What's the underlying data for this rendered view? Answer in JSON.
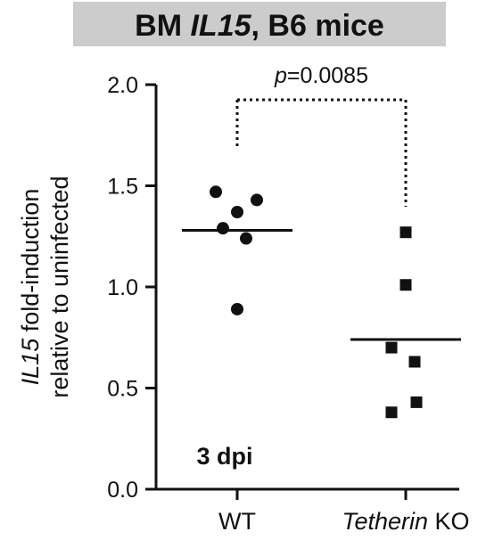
{
  "chart_data": {
    "type": "scatter",
    "title_parts": [
      {
        "text": "BM ",
        "italic": false
      },
      {
        "text": "IL15",
        "italic": true
      },
      {
        "text": ", B6 mice",
        "italic": false
      }
    ],
    "banner_color": "#cccccc",
    "ylabel_line1_parts": [
      {
        "text": "IL15",
        "italic": true
      },
      {
        "text": " fold-induction",
        "italic": false
      }
    ],
    "ylabel_line2": "relative to uninfected",
    "ylim": [
      0.0,
      2.0
    ],
    "yticks": [
      "0.0",
      "0.5",
      "1.0",
      "1.5",
      "2.0"
    ],
    "ytick_values": [
      0.0,
      0.5,
      1.0,
      1.5,
      2.0
    ],
    "categories": [
      {
        "parts": [
          {
            "text": "WT",
            "italic": false
          }
        ]
      },
      {
        "parts": [
          {
            "text": "Tetherin",
            "italic": true
          },
          {
            "text": " KO",
            "italic": false
          }
        ]
      }
    ],
    "series": [
      {
        "name": "WT",
        "marker": "circle",
        "values": [
          1.47,
          1.43,
          1.37,
          1.29,
          1.24,
          0.89
        ],
        "mean": 1.28
      },
      {
        "name": "Tetherin KO",
        "marker": "square",
        "values": [
          1.27,
          1.01,
          0.7,
          0.63,
          0.43,
          0.38
        ],
        "mean": 0.74
      }
    ],
    "significance": {
      "prefix": "p",
      "text": "=0.0085"
    },
    "annotation": "3 dpi"
  }
}
